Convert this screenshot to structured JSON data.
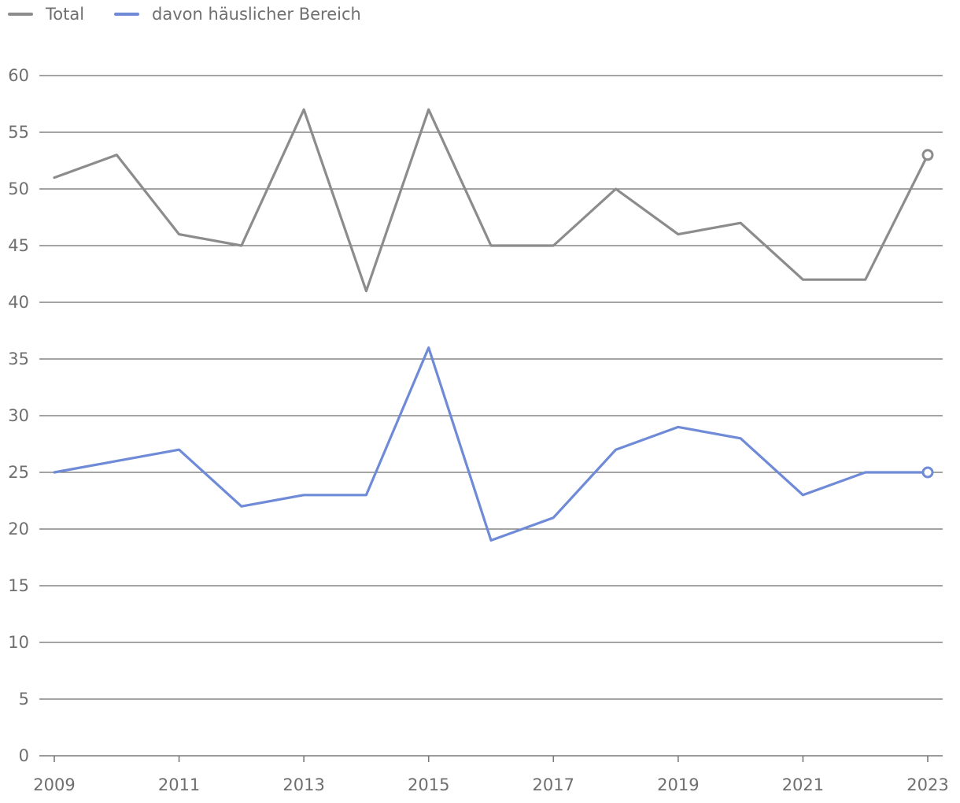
{
  "chart_data": {
    "type": "line",
    "x": [
      2009,
      2010,
      2011,
      2012,
      2013,
      2014,
      2015,
      2016,
      2017,
      2018,
      2019,
      2020,
      2021,
      2022,
      2023
    ],
    "xticks": [
      "2009",
      "2011",
      "2013",
      "2015",
      "2017",
      "2019",
      "2021",
      "2023"
    ],
    "yticks": [
      "0",
      "5",
      "10",
      "15",
      "20",
      "25",
      "30",
      "35",
      "40",
      "45",
      "50",
      "55",
      "60"
    ],
    "ylim": [
      0,
      60
    ],
    "xlim": [
      2009,
      2023
    ],
    "grid": "horizontal",
    "legend_position": "top-left",
    "series": [
      {
        "name": "Total",
        "color": "#8c8c8c",
        "values": [
          51,
          53,
          46,
          45,
          57,
          41,
          57,
          45,
          45,
          50,
          46,
          47,
          42,
          42,
          53
        ]
      },
      {
        "name": "davon häuslicher Bereich",
        "color": "#6f8ad6",
        "values": [
          25,
          26,
          27,
          22,
          23,
          23,
          36,
          19,
          21,
          27,
          29,
          28,
          23,
          25,
          25
        ]
      }
    ],
    "title": "",
    "xlabel": "",
    "ylabel": ""
  }
}
